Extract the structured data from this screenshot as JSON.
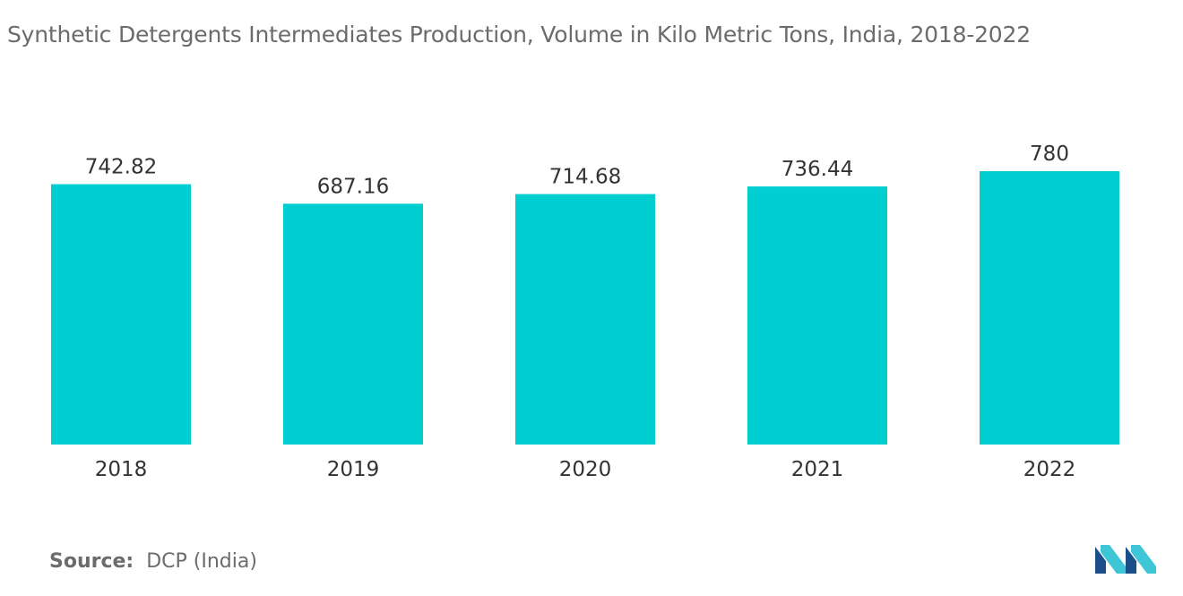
{
  "title": "Synthetic Detergents Intermediates Production, Volume in Kilo Metric Tons, India, 2018-2022",
  "source": {
    "label": "Source:",
    "text": "DCP (India)"
  },
  "logo": {
    "icon": "mordor-intelligence-logo-icon",
    "colors": [
      "#1b4f8a",
      "#3ec6d6"
    ]
  },
  "colors": {
    "bar": "#00ced1",
    "title": "#6b6b6b",
    "label": "#333333"
  },
  "chart_data": {
    "type": "bar",
    "title": "Synthetic Detergents Intermediates Production, Volume in Kilo Metric Tons, India, 2018-2022",
    "categories": [
      "2018",
      "2019",
      "2020",
      "2021",
      "2022"
    ],
    "values": [
      742.82,
      687.16,
      714.68,
      736.44,
      780
    ],
    "data_labels": [
      "742.82",
      "687.16",
      "714.68",
      "736.44",
      "780"
    ],
    "xlabel": "",
    "ylabel": "",
    "ylim": [
      0,
      800
    ],
    "grid": false,
    "legend": "none"
  }
}
